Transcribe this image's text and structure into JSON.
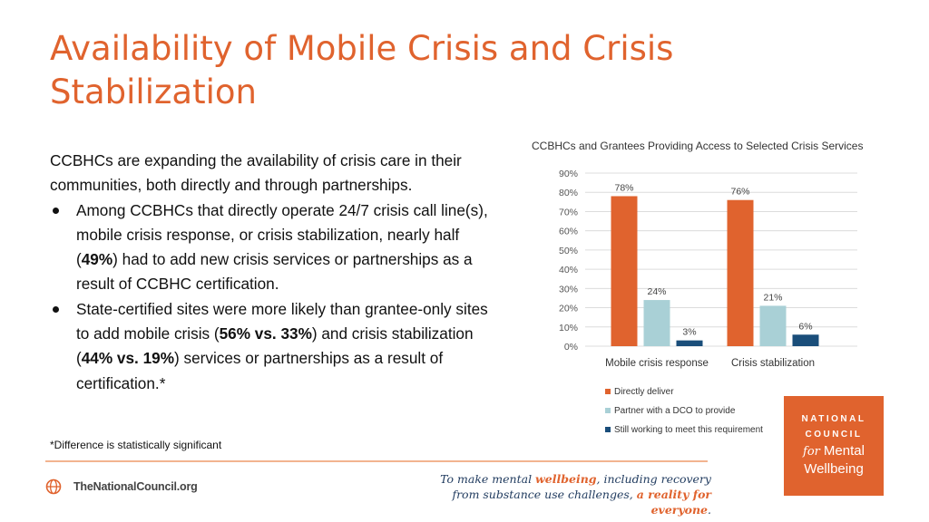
{
  "slide": {
    "title": "Availability of Mobile Crisis and Crisis Stabilization",
    "intro": "CCBHCs are expanding the availability of crisis care in their communities, both directly and through partnerships.",
    "bullet1": {
      "before": "Among CCBHCs that directly operate 24/7 crisis call line(s), mobile crisis response, or crisis stabilization, nearly half (",
      "bold": "49%",
      "after": ") had to add new crisis services or partnerships as a result of CCBHC certification."
    },
    "bullet2": {
      "part1": "State-certified sites were more likely than grantee-only sites to add mobile crisis (",
      "bold1": "56% vs. 33%",
      "part2": ") and crisis stabilization (",
      "bold2": "44% vs. 19%",
      "part3": ") services or partnerships as a result of certification.*"
    },
    "footnote": "*Difference is statistically significant"
  },
  "footer": {
    "site": "TheNationalCouncil.org",
    "tagline": {
      "t1": "To make mental ",
      "t2": "wellbeing",
      "t3": ", including recovery from substance use challenges, ",
      "t4": "a reality for everyone",
      "t5": "."
    },
    "logo": {
      "line1": "NATIONAL",
      "line2": "COUNCIL",
      "for": "for",
      "line3": "Mental",
      "line4": "Wellbeing"
    }
  },
  "colors": {
    "accent": "#e0632e",
    "series1": "#e0632e",
    "series2": "#a9d0d6",
    "series3": "#1a4e7a"
  },
  "chart_data": {
    "type": "bar",
    "title": "CCBHCs and Grantees Providing Access to Selected Crisis Services",
    "categories": [
      "Mobile crisis response",
      "Crisis stabilization"
    ],
    "series": [
      {
        "name": "Directly deliver",
        "values": [
          78,
          76
        ],
        "labels": [
          "78%",
          "76%"
        ],
        "color": "#e0632e"
      },
      {
        "name": "Partner with a DCO to provide",
        "values": [
          24,
          21
        ],
        "labels": [
          "24%",
          "21%"
        ],
        "color": "#a9d0d6"
      },
      {
        "name": "Still working to meet this requirement",
        "values": [
          3,
          6
        ],
        "labels": [
          "3%",
          "6%"
        ],
        "color": "#1a4e7a"
      }
    ],
    "yticks": [
      "0%",
      "10%",
      "20%",
      "30%",
      "40%",
      "50%",
      "60%",
      "70%",
      "80%",
      "90%"
    ],
    "ylim": [
      0,
      90
    ],
    "grid": true,
    "legend": "bottom",
    "xlabel": "",
    "ylabel": ""
  }
}
